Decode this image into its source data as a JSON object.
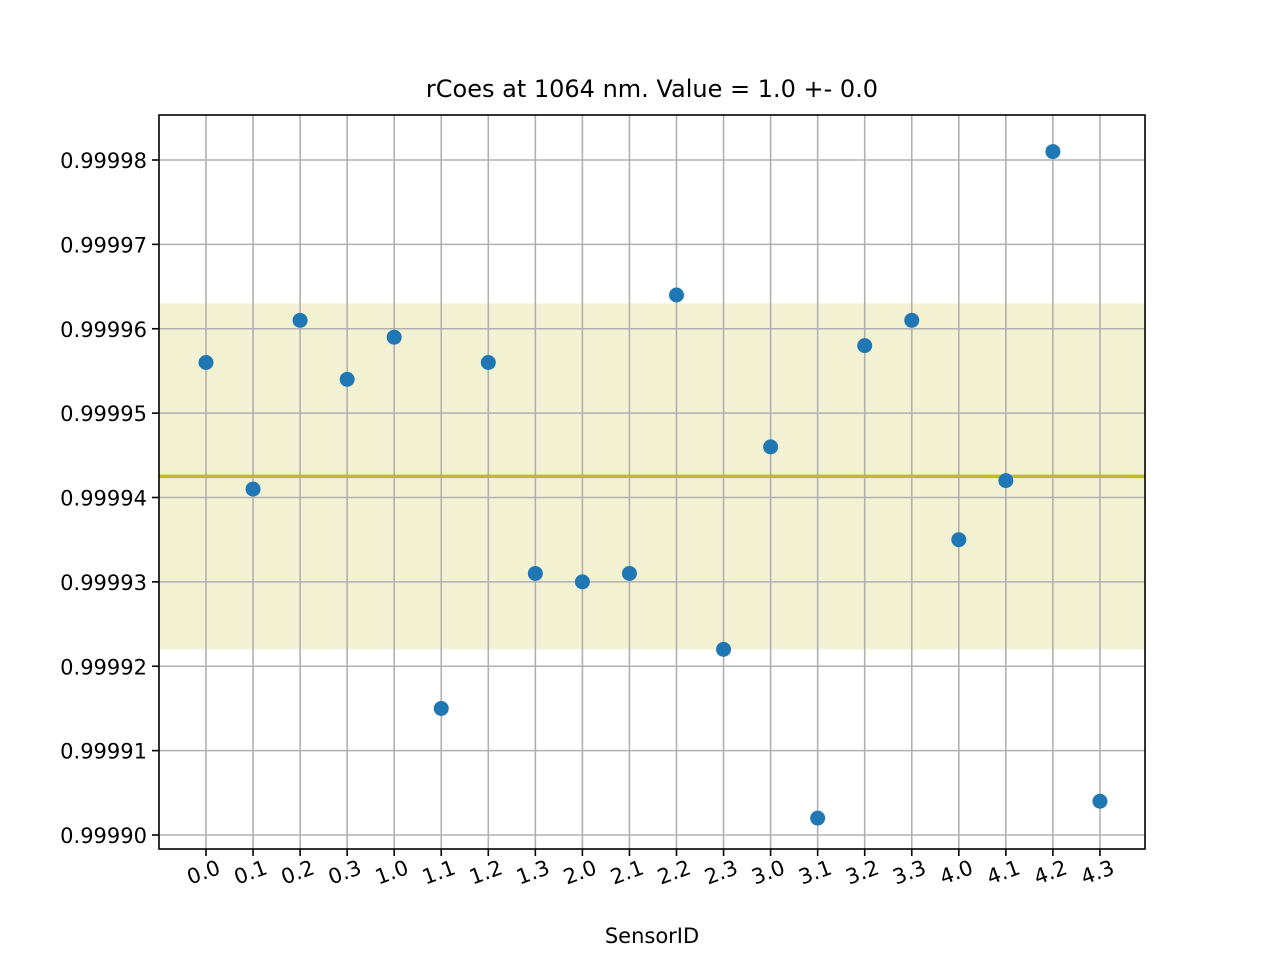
{
  "chart_data": {
    "type": "scatter",
    "title": "rCoes at 1064 nm. Value = 1.0 +- 0.0",
    "xlabel": "SensorID",
    "ylabel": "",
    "categories": [
      "0.0",
      "0.1",
      "0.2",
      "0.3",
      "1.0",
      "1.1",
      "1.2",
      "1.3",
      "2.0",
      "2.1",
      "2.2",
      "2.3",
      "3.0",
      "3.1",
      "3.2",
      "3.3",
      "4.0",
      "4.1",
      "4.2",
      "4.3"
    ],
    "values": [
      0.999956,
      0.999941,
      0.999961,
      0.999954,
      0.999959,
      0.999915,
      0.999956,
      0.999931,
      0.99993,
      0.999931,
      0.999964,
      0.999922,
      0.999946,
      0.999902,
      0.999958,
      0.999961,
      0.999935,
      0.999942,
      0.999981,
      0.999904
    ],
    "yticks": [
      0.9999,
      0.99991,
      0.99992,
      0.99993,
      0.99994,
      0.99995,
      0.99996,
      0.99997,
      0.99998
    ],
    "ytick_labels": [
      "0.99990",
      "0.99991",
      "0.99992",
      "0.99993",
      "0.99994",
      "0.99995",
      "0.99996",
      "0.99997",
      "0.99998"
    ],
    "ylim": [
      0.999898,
      0.9999855
    ],
    "mean": 0.9999425,
    "band": [
      0.999922,
      0.999963
    ],
    "grid": true,
    "colors": {
      "points": "#1f77b4",
      "mean_line": "#bcbd22",
      "band": "#bcbd22",
      "grid": "#b0b0b0"
    }
  }
}
